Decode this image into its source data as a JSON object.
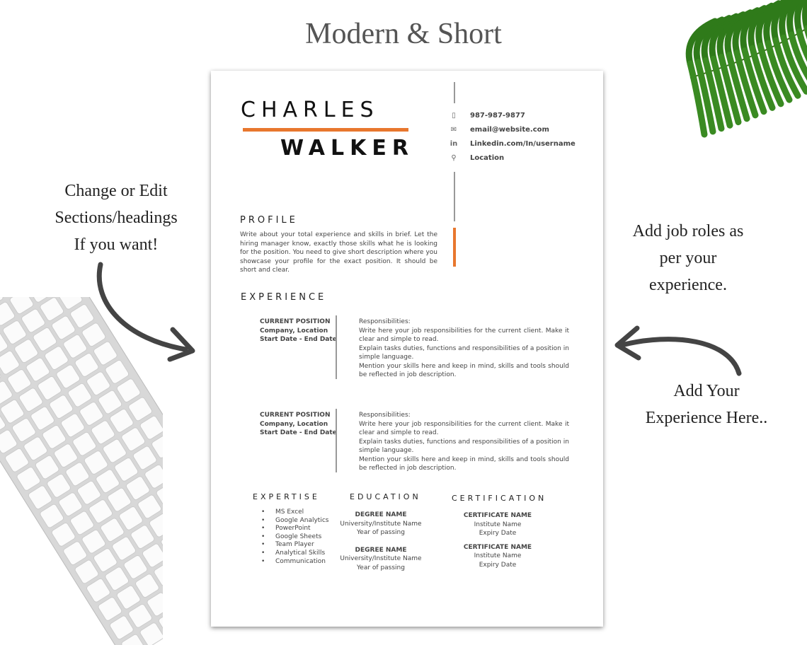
{
  "title": "Modern & Short",
  "notes": {
    "left": [
      "Change or Edit",
      "Sections/headings",
      "If you want!"
    ],
    "right_top": [
      "Add job roles as",
      "per your",
      "experience."
    ],
    "right_bottom": [
      "Add Your",
      "Experience Here.."
    ]
  },
  "colors": {
    "accent": "#e8772e",
    "text": "#333333"
  },
  "resume": {
    "first_name": "CHARLES",
    "last_name": "WALKER",
    "contact": [
      {
        "icon": "phone-icon",
        "text": "987-987-9877"
      },
      {
        "icon": "mail-icon",
        "text": "email@website.com"
      },
      {
        "icon": "linkedin-icon",
        "text": "Linkedin.com/In/username"
      },
      {
        "icon": "location-icon",
        "text": "Location"
      }
    ],
    "profile": {
      "heading": "PROFILE",
      "text": "Write about your total experience and skills in brief. Let the hiring manager know, exactly those skills what he is looking for the position. You need to give short description where you showcase your profile for the exact position. It should be short and clear."
    },
    "experience": {
      "heading": "EXPERIENCE",
      "jobs": [
        {
          "position": "CURRENT POSITION",
          "company": "Company, Location",
          "dates": "Start Date - End Date",
          "resp_label": "Responsibilities:",
          "lines": [
            "Write here your job responsibilities for the current client. Make it clear and simple to read.",
            "Explain tasks duties, functions and responsibilities of a position in simple language.",
            "Mention your skills here and keep in mind, skills and tools should be reflected in job description."
          ]
        },
        {
          "position": "CURRENT POSITION",
          "company": "Company, Location",
          "dates": "Start Date - End Date",
          "resp_label": "Responsibilities:",
          "lines": [
            "Write here your job responsibilities for the current client. Make it clear and simple to read.",
            "Explain tasks duties, functions and responsibilities of a position in simple language.",
            "Mention your skills here and keep in mind, skills and tools should be reflected in job description."
          ]
        }
      ]
    },
    "expertise": {
      "heading": "EXPERTISE",
      "items": [
        "MS Excel",
        "Google Analytics",
        "PowerPoint",
        "Google Sheets",
        "Team Player",
        "Analytical Skills",
        "Communication"
      ]
    },
    "education": {
      "heading": "EDUCATION",
      "items": [
        {
          "degree": "DEGREE NAME",
          "school": "University/Institute Name",
          "year": "Year of passing"
        },
        {
          "degree": "DEGREE NAME",
          "school": "University/Institute Name",
          "year": "Year of passing"
        }
      ]
    },
    "certification": {
      "heading": "CERTIFICATION",
      "items": [
        {
          "name": "CERTIFICATE NAME",
          "institute": "Institute Name",
          "expiry": "Expiry Date"
        },
        {
          "name": "CERTIFICATE NAME",
          "institute": "Institute Name",
          "expiry": "Expiry Date"
        }
      ]
    }
  }
}
